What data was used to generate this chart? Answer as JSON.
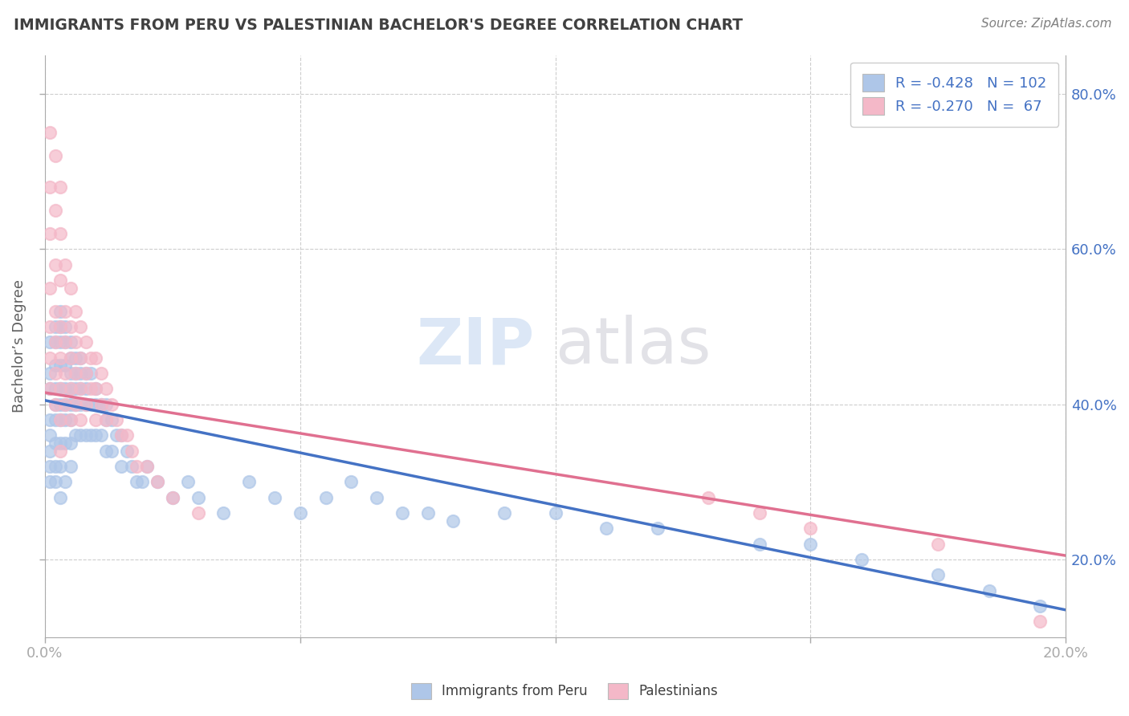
{
  "title": "IMMIGRANTS FROM PERU VS PALESTINIAN BACHELOR'S DEGREE CORRELATION CHART",
  "source_text": "Source: ZipAtlas.com",
  "watermark": "ZIPatlas",
  "ylabel": "Bachelor’s Degree",
  "blue_label": "Immigrants from Peru",
  "pink_label": "Palestinians",
  "blue_R": -0.428,
  "blue_N": 102,
  "pink_R": -0.27,
  "pink_N": 67,
  "blue_color": "#aec6e8",
  "pink_color": "#f4b8c8",
  "blue_line_color": "#4472c4",
  "pink_line_color": "#e07090",
  "legend_text_color": "#4472c4",
  "title_color": "#404040",
  "background_color": "#ffffff",
  "grid_color": "#c8c8c8",
  "xmin": 0.0,
  "xmax": 0.2,
  "ymin": 0.1,
  "ymax": 0.85,
  "blue_line_x0": 0.0,
  "blue_line_y0": 0.405,
  "blue_line_x1": 0.2,
  "blue_line_y1": 0.135,
  "pink_line_x0": 0.0,
  "pink_line_y0": 0.415,
  "pink_line_x1": 0.2,
  "pink_line_y1": 0.205,
  "blue_scatter_x": [
    0.001,
    0.001,
    0.001,
    0.001,
    0.001,
    0.001,
    0.001,
    0.001,
    0.002,
    0.002,
    0.002,
    0.002,
    0.002,
    0.002,
    0.002,
    0.002,
    0.002,
    0.003,
    0.003,
    0.003,
    0.003,
    0.003,
    0.003,
    0.003,
    0.003,
    0.003,
    0.003,
    0.004,
    0.004,
    0.004,
    0.004,
    0.004,
    0.004,
    0.004,
    0.004,
    0.005,
    0.005,
    0.005,
    0.005,
    0.005,
    0.005,
    0.005,
    0.005,
    0.006,
    0.006,
    0.006,
    0.006,
    0.006,
    0.007,
    0.007,
    0.007,
    0.007,
    0.007,
    0.008,
    0.008,
    0.008,
    0.008,
    0.009,
    0.009,
    0.009,
    0.01,
    0.01,
    0.01,
    0.011,
    0.011,
    0.012,
    0.012,
    0.012,
    0.013,
    0.013,
    0.014,
    0.015,
    0.015,
    0.016,
    0.017,
    0.018,
    0.019,
    0.02,
    0.022,
    0.025,
    0.028,
    0.03,
    0.035,
    0.04,
    0.045,
    0.05,
    0.055,
    0.06,
    0.065,
    0.07,
    0.075,
    0.08,
    0.09,
    0.1,
    0.11,
    0.12,
    0.14,
    0.15,
    0.16,
    0.175,
    0.185,
    0.195
  ],
  "blue_scatter_y": [
    0.48,
    0.44,
    0.42,
    0.38,
    0.36,
    0.34,
    0.32,
    0.3,
    0.5,
    0.48,
    0.45,
    0.42,
    0.4,
    0.38,
    0.35,
    0.32,
    0.3,
    0.52,
    0.5,
    0.48,
    0.45,
    0.42,
    0.4,
    0.38,
    0.35,
    0.32,
    0.28,
    0.5,
    0.48,
    0.45,
    0.42,
    0.4,
    0.38,
    0.35,
    0.3,
    0.48,
    0.46,
    0.44,
    0.42,
    0.4,
    0.38,
    0.35,
    0.32,
    0.46,
    0.44,
    0.42,
    0.4,
    0.36,
    0.46,
    0.44,
    0.42,
    0.4,
    0.36,
    0.44,
    0.42,
    0.4,
    0.36,
    0.44,
    0.4,
    0.36,
    0.42,
    0.4,
    0.36,
    0.4,
    0.36,
    0.4,
    0.38,
    0.34,
    0.38,
    0.34,
    0.36,
    0.36,
    0.32,
    0.34,
    0.32,
    0.3,
    0.3,
    0.32,
    0.3,
    0.28,
    0.3,
    0.28,
    0.26,
    0.3,
    0.28,
    0.26,
    0.28,
    0.3,
    0.28,
    0.26,
    0.26,
    0.25,
    0.26,
    0.26,
    0.24,
    0.24,
    0.22,
    0.22,
    0.2,
    0.18,
    0.16,
    0.14
  ],
  "pink_scatter_x": [
    0.001,
    0.001,
    0.001,
    0.001,
    0.001,
    0.001,
    0.001,
    0.002,
    0.002,
    0.002,
    0.002,
    0.002,
    0.002,
    0.002,
    0.003,
    0.003,
    0.003,
    0.003,
    0.003,
    0.003,
    0.003,
    0.003,
    0.004,
    0.004,
    0.004,
    0.004,
    0.004,
    0.005,
    0.005,
    0.005,
    0.005,
    0.005,
    0.006,
    0.006,
    0.006,
    0.006,
    0.007,
    0.007,
    0.007,
    0.007,
    0.008,
    0.008,
    0.008,
    0.009,
    0.009,
    0.01,
    0.01,
    0.01,
    0.011,
    0.011,
    0.012,
    0.012,
    0.013,
    0.014,
    0.015,
    0.016,
    0.017,
    0.018,
    0.02,
    0.022,
    0.025,
    0.03,
    0.13,
    0.14,
    0.15,
    0.175,
    0.195
  ],
  "pink_scatter_y": [
    0.75,
    0.68,
    0.62,
    0.55,
    0.5,
    0.46,
    0.42,
    0.72,
    0.65,
    0.58,
    0.52,
    0.48,
    0.44,
    0.4,
    0.68,
    0.62,
    0.56,
    0.5,
    0.46,
    0.42,
    0.38,
    0.34,
    0.58,
    0.52,
    0.48,
    0.44,
    0.4,
    0.55,
    0.5,
    0.46,
    0.42,
    0.38,
    0.52,
    0.48,
    0.44,
    0.4,
    0.5,
    0.46,
    0.42,
    0.38,
    0.48,
    0.44,
    0.4,
    0.46,
    0.42,
    0.46,
    0.42,
    0.38,
    0.44,
    0.4,
    0.42,
    0.38,
    0.4,
    0.38,
    0.36,
    0.36,
    0.34,
    0.32,
    0.32,
    0.3,
    0.28,
    0.26,
    0.28,
    0.26,
    0.24,
    0.22,
    0.12
  ]
}
